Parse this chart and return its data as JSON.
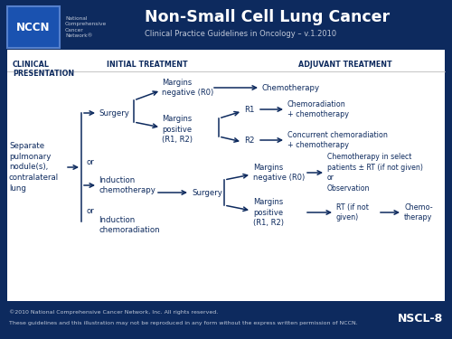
{
  "bg_color": "#0d2a5e",
  "text_dark": "#0d2a5e",
  "text_light": "#ffffff",
  "text_silver": "#c0c8d8",
  "title_main": "Non-Small Cell Lung Cancer",
  "title_sub": "Clinical Practice Guidelines in Oncology – v.1.2010",
  "footer_line1": "©2010 National Comprehensive Cancer Network, Inc. All rights reserved.",
  "footer_line2": "These guidelines and this illustration may not be reproduced in any form without the express written permission of NCCN.",
  "footer_code": "NSCL-8"
}
